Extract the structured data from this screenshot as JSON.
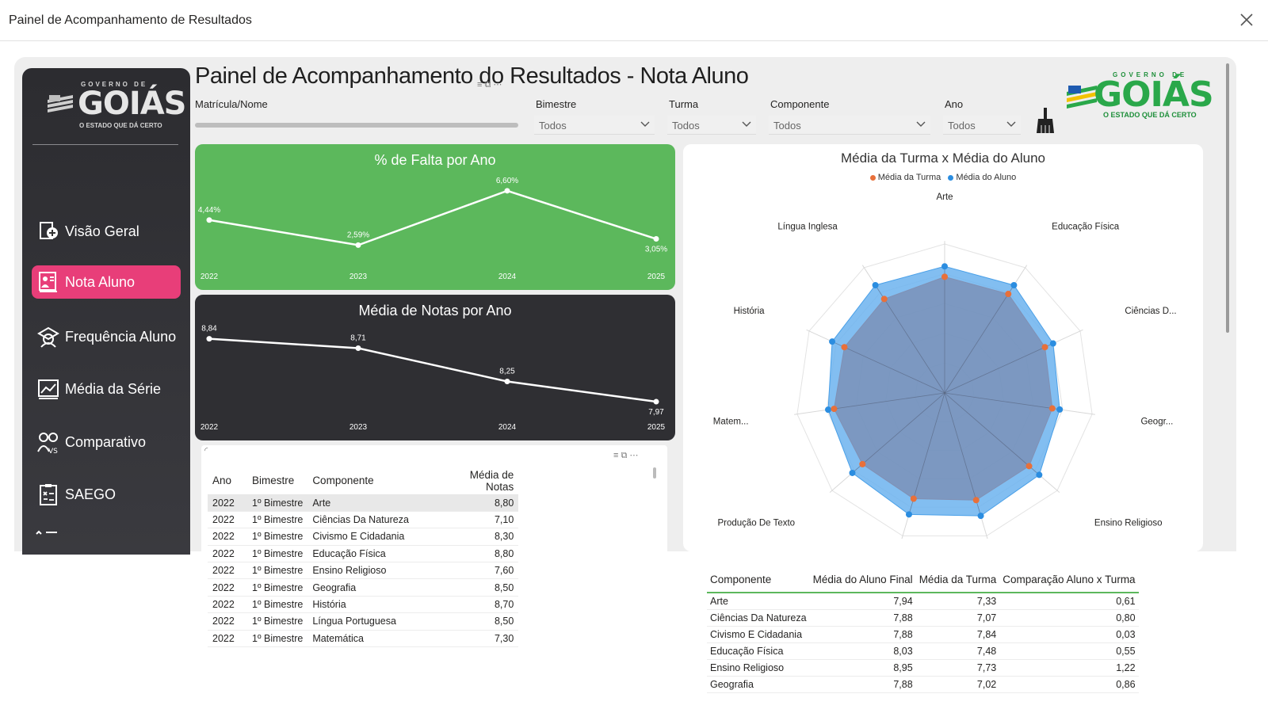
{
  "window": {
    "title": "Painel de Acompanhamento de Resultados",
    "close_icon": "close-icon"
  },
  "sidebar": {
    "logo": {
      "top_text": "GOVERNO DE",
      "big_text": "GOIÁS",
      "tagline": "O ESTADO QUE DÁ CERTO"
    },
    "items": [
      {
        "label": "Visão Geral",
        "icon": "overview-icon",
        "active": false
      },
      {
        "label": "Nota Aluno",
        "icon": "student-grade-icon",
        "active": true
      },
      {
        "label": "Frequência Aluno",
        "icon": "attendance-icon",
        "active": false
      },
      {
        "label": "Média da Série",
        "icon": "trend-chart-icon",
        "active": false
      },
      {
        "label": "Comparativo",
        "icon": "compare-users-icon",
        "active": false
      },
      {
        "label": "SAEGO",
        "icon": "clipboard-icon",
        "active": false
      }
    ],
    "active_color": "#e83e79"
  },
  "header": {
    "title": "Painel de Acompanhamento do Resultados - Nota Aluno",
    "logo": {
      "top_text": "GOVERNO DE",
      "big_text": "GOIÁS",
      "tagline": "O ESTADO QUE DÁ CERTO"
    }
  },
  "filters": {
    "matricula_label": "Matrícula/Nome",
    "bimestre": {
      "label": "Bimestre",
      "value": "Todos"
    },
    "turma": {
      "label": "Turma",
      "value": "Todos"
    },
    "componente": {
      "label": "Componente",
      "value": "Todos"
    },
    "ano": {
      "label": "Ano",
      "value": "Todos"
    },
    "clear_icon": "broom-icon"
  },
  "falta_chart": {
    "title": "% de Falta por Ano",
    "background": "#5cb85c",
    "chart_data": {
      "type": "line",
      "x": [
        "2022",
        "2023",
        "2024",
        "2025"
      ],
      "values": [
        4.44,
        2.59,
        6.6,
        3.05
      ],
      "labels": [
        "4,44%",
        "2,59%",
        "6,60%",
        "3,05%"
      ]
    }
  },
  "notas_chart": {
    "title": "Média de Notas por Ano",
    "background": "#2f2f33",
    "chart_data": {
      "type": "line",
      "x": [
        "2022",
        "2023",
        "2024",
        "2025"
      ],
      "values": [
        8.84,
        8.71,
        8.25,
        7.97
      ],
      "labels": [
        "8,84",
        "8,71",
        "8,25",
        "7,97"
      ]
    }
  },
  "grades_table": {
    "columns": [
      "Ano",
      "Bimestre",
      "Componente",
      "Média de Notas"
    ],
    "rows": [
      [
        "2022",
        "1º Bimestre",
        "Arte",
        "8,80"
      ],
      [
        "2022",
        "1º Bimestre",
        "Ciências Da Natureza",
        "7,10"
      ],
      [
        "2022",
        "1º Bimestre",
        "Civismo E Cidadania",
        "8,30"
      ],
      [
        "2022",
        "1º Bimestre",
        "Educação Física",
        "8,80"
      ],
      [
        "2022",
        "1º Bimestre",
        "Ensino Religioso",
        "7,60"
      ],
      [
        "2022",
        "1º Bimestre",
        "Geografia",
        "8,50"
      ],
      [
        "2022",
        "1º Bimestre",
        "História",
        "8,70"
      ],
      [
        "2022",
        "1º Bimestre",
        "Língua Portuguesa",
        "8,50"
      ],
      [
        "2022",
        "1º Bimestre",
        "Matemática",
        "7,30"
      ]
    ]
  },
  "radar": {
    "title": "Média da Turma x Média do Aluno",
    "legend": [
      {
        "name": "Média da Turma",
        "color": "#e8703a"
      },
      {
        "name": "Média do Aluno",
        "color": "#2b8de0"
      }
    ],
    "chart_data": {
      "type": "radar",
      "axes": [
        "Arte",
        "Educação Física",
        "Ciências D...",
        "Geogr...",
        "Ensino Religioso",
        "",
        "",
        "Produção De Texto",
        "Matem...",
        "História",
        "Língua Inglesa"
      ],
      "series": [
        {
          "name": "Média da Turma",
          "values": [
            0.78,
            0.79,
            0.74,
            0.73,
            0.75,
            0.75,
            0.74,
            0.73,
            0.75,
            0.74,
            0.75
          ]
        },
        {
          "name": "Média do Aluno",
          "values": [
            0.85,
            0.86,
            0.8,
            0.78,
            0.84,
            0.86,
            0.85,
            0.82,
            0.79,
            0.83,
            0.86
          ]
        }
      ]
    }
  },
  "comparison_table": {
    "columns": [
      "Componente",
      "Média do Aluno Final",
      "Média da Turma",
      "Comparação Aluno x Turma"
    ],
    "rows": [
      [
        "Arte",
        "7,94",
        "7,33",
        "0,61"
      ],
      [
        "Ciências Da Natureza",
        "7,88",
        "7,07",
        "0,80"
      ],
      [
        "Civismo E Cidadania",
        "7,88",
        "7,84",
        "0,03"
      ],
      [
        "Educação Física",
        "8,03",
        "7,48",
        "0,55"
      ],
      [
        "Ensino Religioso",
        "8,95",
        "7,73",
        "1,22"
      ],
      [
        "Geografia",
        "7,88",
        "7,02",
        "0,86"
      ]
    ]
  }
}
